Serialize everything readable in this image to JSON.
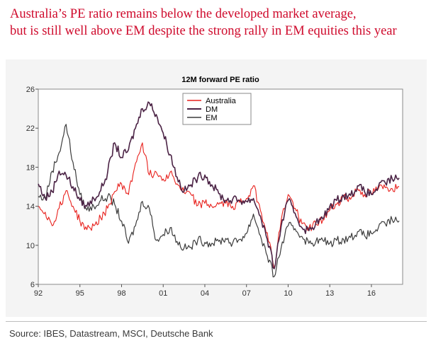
{
  "headline": {
    "line1": "Australia’s PE ratio remains below the developed market average,",
    "line2": "but is still well above EM despite the strong rally in EM equities this year"
  },
  "source": "Source: IBES, Datastream, MSCI, Deutsche Bank",
  "colors": {
    "australia": "#e8211d",
    "dm": "#4b2345",
    "em": "#3c3c3c",
    "headline": "#cf0a2c"
  },
  "chart_data": {
    "type": "line",
    "title": "12M forward PE ratio",
    "xlabel": "",
    "ylabel": "",
    "xlim": [
      1992,
      2018.25
    ],
    "ylim": [
      6,
      26
    ],
    "x_ticks": [
      1992,
      1995,
      1998,
      2001,
      2004,
      2007,
      2010,
      2013,
      2016
    ],
    "x_tick_labels": [
      "92",
      "95",
      "98",
      "01",
      "04",
      "07",
      "10",
      "13",
      "16"
    ],
    "y_ticks": [
      6,
      10,
      14,
      18,
      22,
      26
    ],
    "y_tick_labels": [
      "6",
      "10",
      "14",
      "18",
      "22",
      "26"
    ],
    "grid": false,
    "legend_position": "top-center",
    "x": [
      1992.0,
      1992.5,
      1993.0,
      1993.5,
      1994.0,
      1994.5,
      1995.0,
      1995.5,
      1996.0,
      1996.5,
      1997.0,
      1997.5,
      1998.0,
      1998.5,
      1999.0,
      1999.5,
      2000.0,
      2000.5,
      2001.0,
      2001.5,
      2002.0,
      2002.5,
      2003.0,
      2003.5,
      2004.0,
      2004.5,
      2005.0,
      2005.5,
      2006.0,
      2006.5,
      2007.0,
      2007.5,
      2008.0,
      2008.5,
      2009.0,
      2009.5,
      2010.0,
      2010.5,
      2011.0,
      2011.5,
      2012.0,
      2012.5,
      2013.0,
      2013.5,
      2014.0,
      2014.5,
      2015.0,
      2015.5,
      2016.0,
      2016.5,
      2017.0,
      2017.5,
      2018.0
    ],
    "series": [
      {
        "name": "Australia",
        "values": [
          14.0,
          13.4,
          12.0,
          13.8,
          15.6,
          14.0,
          12.5,
          11.6,
          12.0,
          12.8,
          13.8,
          15.5,
          16.3,
          15.2,
          18.4,
          20.5,
          17.2,
          17.5,
          16.8,
          17.5,
          16.3,
          15.4,
          15.2,
          14.1,
          14.3,
          14.0,
          14.2,
          14.3,
          14.0,
          14.4,
          14.8,
          16.1,
          13.6,
          11.3,
          7.6,
          12.6,
          15.2,
          13.8,
          12.2,
          11.8,
          12.2,
          12.6,
          13.6,
          14.2,
          15.0,
          14.7,
          15.8,
          15.2,
          15.3,
          15.8,
          15.9,
          15.8,
          16.0
        ]
      },
      {
        "name": "DM",
        "values": [
          16.3,
          14.8,
          15.5,
          17.6,
          17.2,
          16.0,
          14.6,
          14.0,
          14.8,
          15.6,
          17.5,
          20.5,
          19.0,
          19.8,
          22.0,
          24.0,
          24.6,
          23.4,
          21.5,
          19.3,
          17.0,
          15.5,
          16.2,
          17.0,
          17.2,
          16.2,
          15.3,
          14.6,
          14.7,
          14.6,
          14.5,
          14.8,
          13.0,
          10.6,
          7.6,
          12.0,
          14.6,
          13.3,
          11.8,
          11.5,
          12.3,
          12.7,
          14.0,
          14.6,
          15.1,
          15.1,
          16.1,
          15.5,
          15.2,
          16.0,
          16.4,
          16.8,
          16.9
        ]
      },
      {
        "name": "EM",
        "values": [
          15.0,
          14.8,
          17.6,
          19.5,
          22.4,
          18.5,
          15.2,
          13.6,
          14.0,
          14.6,
          15.0,
          14.2,
          12.5,
          10.2,
          12.0,
          14.5,
          13.8,
          10.5,
          11.1,
          11.8,
          10.4,
          9.7,
          9.8,
          10.6,
          10.3,
          10.2,
          10.4,
          10.7,
          10.2,
          10.6,
          11.2,
          13.2,
          11.0,
          8.9,
          6.8,
          9.8,
          12.0,
          11.7,
          10.9,
          10.2,
          10.4,
          10.5,
          10.2,
          10.5,
          10.6,
          10.8,
          11.4,
          11.0,
          11.2,
          11.8,
          12.2,
          12.6,
          12.5
        ]
      }
    ]
  }
}
